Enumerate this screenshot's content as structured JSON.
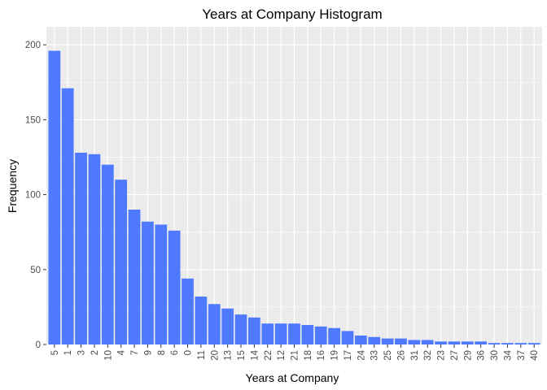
{
  "chart_data": {
    "type": "bar",
    "title": "Years at Company Histogram",
    "xlabel": "Years at Company",
    "ylabel": "Frequency",
    "categories": [
      "5",
      "1",
      "3",
      "2",
      "10",
      "4",
      "7",
      "9",
      "8",
      "6",
      "0",
      "11",
      "20",
      "13",
      "15",
      "14",
      "22",
      "12",
      "21",
      "18",
      "16",
      "19",
      "17",
      "24",
      "33",
      "25",
      "26",
      "31",
      "32",
      "23",
      "27",
      "29",
      "36",
      "30",
      "34",
      "37",
      "40"
    ],
    "values": [
      196,
      171,
      128,
      127,
      120,
      110,
      90,
      82,
      80,
      76,
      44,
      32,
      27,
      24,
      20,
      18,
      14,
      14,
      14,
      13,
      12,
      11,
      9,
      6,
      5,
      4,
      4,
      3,
      3,
      2,
      2,
      2,
      2,
      1,
      1,
      1,
      1
    ],
    "ylim": [
      0,
      212
    ],
    "yticks": [
      0,
      50,
      100,
      150,
      200
    ],
    "grid": true,
    "bar_color": "#4f79ff",
    "panel_color": "#ebebeb",
    "grid_color": "#ffffff"
  }
}
